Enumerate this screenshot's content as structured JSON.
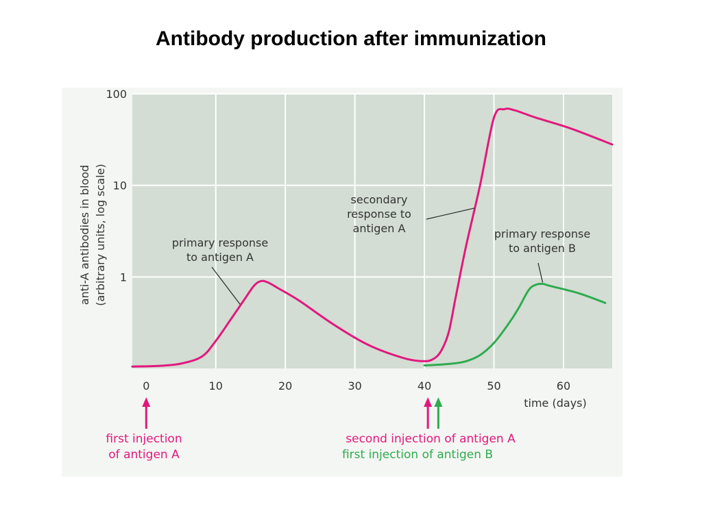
{
  "page": {
    "title": "Antibody production after immunization"
  },
  "chart_data": {
    "type": "line",
    "title": "Antibody production after immunization",
    "xlabel": "time (days)",
    "ylabel_lines": [
      "anti-A antibodies in blood",
      "(arbitrary units, log scale)"
    ],
    "xlim": [
      -2,
      67
    ],
    "ylim": [
      0.1,
      100
    ],
    "log_y": true,
    "grid": true,
    "x_ticks": [
      0,
      10,
      20,
      30,
      40,
      50,
      60
    ],
    "y_ticks": [
      {
        "value": 1,
        "label": "1"
      },
      {
        "value": 10,
        "label": "10"
      },
      {
        "value": 100,
        "label": "100"
      }
    ],
    "series": [
      {
        "color": "#e2177e",
        "x": [
          -2,
          2,
          5,
          8,
          10,
          12,
          14,
          15.5,
          16.5,
          17.5,
          19,
          22,
          27,
          32,
          37,
          40,
          41.5,
          42.5,
          43.5,
          44.5,
          46,
          48,
          50,
          51.5,
          53,
          56,
          61,
          67
        ],
        "y": [
          0.105,
          0.107,
          0.113,
          0.135,
          0.2,
          0.33,
          0.55,
          0.8,
          0.9,
          0.87,
          0.75,
          0.55,
          0.3,
          0.18,
          0.13,
          0.12,
          0.13,
          0.16,
          0.25,
          0.6,
          2.2,
          10,
          55,
          68,
          66,
          55,
          42,
          28
        ]
      },
      {
        "color": "#2eab4f",
        "x": [
          40,
          42,
          44,
          46,
          48,
          50,
          52,
          53.5,
          55,
          56,
          57,
          58,
          62,
          66
        ],
        "y": [
          0.108,
          0.11,
          0.113,
          0.12,
          0.14,
          0.19,
          0.3,
          0.45,
          0.72,
          0.82,
          0.84,
          0.8,
          0.67,
          0.52
        ]
      }
    ],
    "annotations": [
      {
        "name": "primary-a",
        "lines": [
          "primary response",
          "to antigen A"
        ],
        "pointer_x": 13.5,
        "color": "#333333"
      },
      {
        "name": "secondary-a",
        "lines": [
          "secondary",
          "response to",
          "antigen A"
        ],
        "pointer_x": 47.2,
        "color": "#333333"
      },
      {
        "name": "primary-b",
        "lines": [
          "primary response",
          "to antigen B"
        ],
        "pointer_x": 57,
        "color": "#333333"
      }
    ],
    "injections": [
      {
        "day": 0,
        "color": "#e2177e",
        "lines": [
          "first injection",
          "of antigen A"
        ]
      },
      {
        "day": 40.5,
        "color": "#e2177e",
        "lines": [
          "second injection of antigen A"
        ]
      },
      {
        "day": 42,
        "color": "#2eab4f",
        "lines": [
          "first injection of antigen B"
        ]
      }
    ]
  }
}
